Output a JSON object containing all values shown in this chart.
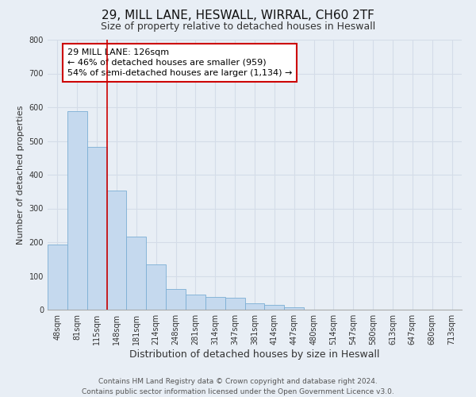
{
  "title": "29, MILL LANE, HESWALL, WIRRAL, CH60 2TF",
  "subtitle": "Size of property relative to detached houses in Heswall",
  "xlabel": "Distribution of detached houses by size in Heswall",
  "ylabel": "Number of detached properties",
  "footnote1": "Contains HM Land Registry data © Crown copyright and database right 2024.",
  "footnote2": "Contains public sector information licensed under the Open Government Licence v3.0.",
  "bar_labels": [
    "48sqm",
    "81sqm",
    "115sqm",
    "148sqm",
    "181sqm",
    "214sqm",
    "248sqm",
    "281sqm",
    "314sqm",
    "347sqm",
    "381sqm",
    "414sqm",
    "447sqm",
    "480sqm",
    "514sqm",
    "547sqm",
    "580sqm",
    "613sqm",
    "647sqm",
    "680sqm",
    "713sqm"
  ],
  "bar_values": [
    193,
    588,
    482,
    354,
    217,
    134,
    61,
    44,
    37,
    36,
    18,
    13,
    8,
    0,
    0,
    0,
    0,
    0,
    0,
    0,
    0
  ],
  "bar_color": "#c5d9ee",
  "bar_edge_color": "#7baed4",
  "property_line_color": "#cc0000",
  "property_line_bar_idx": 2,
  "annotation_text": "29 MILL LANE: 126sqm\n← 46% of detached houses are smaller (959)\n54% of semi-detached houses are larger (1,134) →",
  "ylim": [
    0,
    800
  ],
  "yticks": [
    0,
    100,
    200,
    300,
    400,
    500,
    600,
    700,
    800
  ],
  "grid_color": "#d4dce8",
  "bg_color": "#e8eef5",
  "plot_bg_color": "#e8eef5",
  "title_fontsize": 11,
  "subtitle_fontsize": 9,
  "xlabel_fontsize": 9,
  "ylabel_fontsize": 8,
  "tick_fontsize": 7,
  "annotation_fontsize": 8,
  "footnote_fontsize": 6.5
}
